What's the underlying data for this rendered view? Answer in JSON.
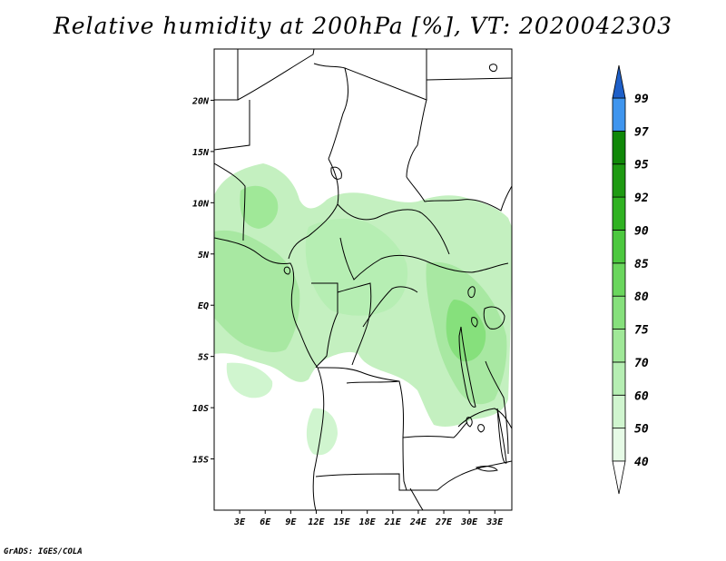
{
  "title": "Relative humidity at 200hPa [%], VT: 2020042303",
  "map": {
    "lon_range": [
      0,
      35
    ],
    "lat_range": [
      -20,
      25
    ],
    "lat_ticks": [
      {
        "value": 20,
        "label": "20N"
      },
      {
        "value": 15,
        "label": "15N"
      },
      {
        "value": 10,
        "label": "10N"
      },
      {
        "value": 5,
        "label": "5N"
      },
      {
        "value": 0,
        "label": "EQ"
      },
      {
        "value": -5,
        "label": "5S"
      },
      {
        "value": -10,
        "label": "10S"
      },
      {
        "value": -15,
        "label": "15S"
      }
    ],
    "lon_ticks": [
      {
        "value": 3,
        "label": "3E"
      },
      {
        "value": 6,
        "label": "6E"
      },
      {
        "value": 9,
        "label": "9E"
      },
      {
        "value": 12,
        "label": "12E"
      },
      {
        "value": 15,
        "label": "15E"
      },
      {
        "value": 18,
        "label": "18E"
      },
      {
        "value": 21,
        "label": "21E"
      },
      {
        "value": 24,
        "label": "24E"
      },
      {
        "value": 27,
        "label": "27E"
      },
      {
        "value": 30,
        "label": "30E"
      },
      {
        "value": 33,
        "label": "33E"
      }
    ]
  },
  "colorbar": {
    "levels": [
      {
        "label": "40",
        "color": "#e6fae6"
      },
      {
        "label": "50",
        "color": "#d0f5cf"
      },
      {
        "label": "60",
        "color": "#b6eeb3"
      },
      {
        "label": "70",
        "color": "#a0e898"
      },
      {
        "label": "75",
        "color": "#86e07c"
      },
      {
        "label": "80",
        "color": "#6ad65d"
      },
      {
        "label": "85",
        "color": "#4cc83f"
      },
      {
        "label": "90",
        "color": "#30b222"
      },
      {
        "label": "92",
        "color": "#1e9a12"
      },
      {
        "label": "95",
        "color": "#108808"
      },
      {
        "label": "97",
        "color": "#3f95ee"
      },
      {
        "label": "99",
        "color": "#2572e0"
      }
    ],
    "min_arrow_color": "#ffffff",
    "max_arrow_color": "#1e5fc8"
  },
  "credit": "GrADS: IGES/COLA"
}
